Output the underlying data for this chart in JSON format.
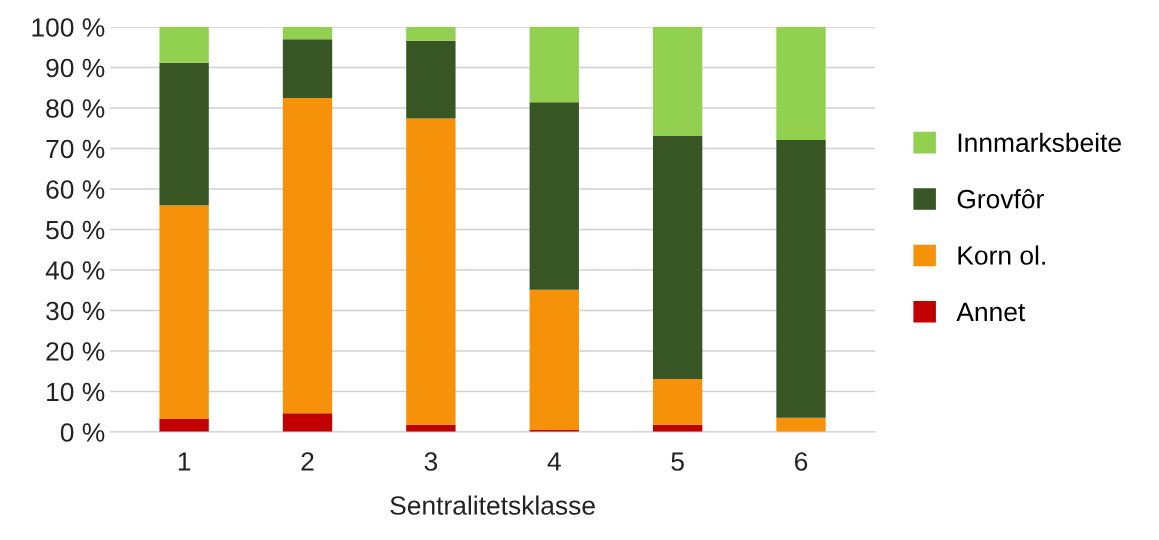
{
  "chart_data": {
    "type": "bar",
    "stacked": true,
    "xlabel": "Sentralitetsklasse",
    "categories": [
      "1",
      "2",
      "3",
      "4",
      "5",
      "6"
    ],
    "series": [
      {
        "name": "Annet",
        "color": "#c00000",
        "values": [
          3.2,
          4.6,
          1.8,
          0.5,
          1.8,
          0
        ]
      },
      {
        "name": "Korn ol.",
        "color": "#f59209",
        "values": [
          52.8,
          77.9,
          75.6,
          34.6,
          11.3,
          3.5
        ]
      },
      {
        "name": "Grovfôr",
        "color": "#375623",
        "values": [
          35.2,
          14.5,
          19.2,
          46.3,
          60.0,
          68.6
        ]
      },
      {
        "name": "Innmarksbeite",
        "color": "#92d050",
        "values": [
          8.8,
          3.0,
          3.4,
          18.6,
          26.9,
          27.9
        ]
      }
    ],
    "ylim": [
      0,
      100
    ],
    "yticks": [
      {
        "value": 0,
        "label": "0 %"
      },
      {
        "value": 10,
        "label": "10 %"
      },
      {
        "value": 20,
        "label": "20 %"
      },
      {
        "value": 30,
        "label": "30 %"
      },
      {
        "value": 40,
        "label": "40 %"
      },
      {
        "value": 50,
        "label": "50 %"
      },
      {
        "value": 60,
        "label": "60 %"
      },
      {
        "value": 70,
        "label": "70 %"
      },
      {
        "value": 80,
        "label": "80 %"
      },
      {
        "value": 90,
        "label": "90 %"
      },
      {
        "value": 100,
        "label": "100 %"
      }
    ],
    "grid": "y",
    "legend": "right"
  }
}
